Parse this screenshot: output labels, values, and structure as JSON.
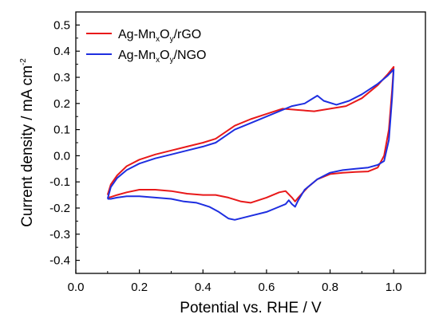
{
  "chart_data": {
    "type": "line",
    "title": "",
    "xlabel": "Potential vs. RHE  /  V",
    "ylabel": "Current density  /  mA cm",
    "ylabel_superscript": "-2",
    "xlim": [
      0.0,
      1.1
    ],
    "ylim": [
      -0.45,
      0.55
    ],
    "xticks": [
      0.0,
      0.2,
      0.4,
      0.6,
      0.8,
      1.0
    ],
    "xtick_labels": [
      "0.0",
      "0.2",
      "0.4",
      "0.6",
      "0.8",
      "1.0"
    ],
    "yticks": [
      -0.4,
      -0.3,
      -0.2,
      -0.1,
      0.0,
      0.1,
      0.2,
      0.3,
      0.4,
      0.5
    ],
    "ytick_labels": [
      "-0.4",
      "-0.3",
      "-0.2",
      "-0.1",
      "0.0",
      "0.1",
      "0.2",
      "0.3",
      "0.4",
      "0.5"
    ],
    "grid": false,
    "legend_position": "top-left",
    "series": [
      {
        "name": "Ag-MnxOy/rGO",
        "legend": {
          "base": "Ag-Mn",
          "sub1": "x",
          "mid": "O",
          "sub2": "y",
          "suffix": "/rGO"
        },
        "color": "#e8191a",
        "x": [
          0.1,
          0.11,
          0.13,
          0.16,
          0.2,
          0.25,
          0.3,
          0.35,
          0.4,
          0.44,
          0.47,
          0.5,
          0.55,
          0.6,
          0.65,
          0.7,
          0.75,
          0.8,
          0.85,
          0.9,
          0.95,
          0.98,
          1.0,
          1.0,
          0.995,
          0.985,
          0.97,
          0.95,
          0.92,
          0.88,
          0.84,
          0.8,
          0.76,
          0.73,
          0.7,
          0.69,
          0.68,
          0.66,
          0.64,
          0.6,
          0.55,
          0.52,
          0.48,
          0.44,
          0.4,
          0.35,
          0.3,
          0.25,
          0.2,
          0.16,
          0.13,
          0.11,
          0.1
        ],
        "y": [
          -0.15,
          -0.11,
          -0.075,
          -0.04,
          -0.015,
          0.005,
          0.02,
          0.035,
          0.05,
          0.065,
          0.09,
          0.115,
          0.14,
          0.16,
          0.18,
          0.175,
          0.17,
          0.18,
          0.19,
          0.22,
          0.27,
          0.31,
          0.34,
          0.34,
          0.25,
          0.1,
          0.0,
          -0.045,
          -0.06,
          -0.062,
          -0.065,
          -0.07,
          -0.09,
          -0.12,
          -0.16,
          -0.175,
          -0.16,
          -0.135,
          -0.14,
          -0.16,
          -0.18,
          -0.175,
          -0.16,
          -0.15,
          -0.15,
          -0.145,
          -0.135,
          -0.13,
          -0.13,
          -0.14,
          -0.15,
          -0.158,
          -0.16
        ]
      },
      {
        "name": "Ag-MnxOy/NGO",
        "legend": {
          "base": "Ag-Mn",
          "sub1": "x",
          "mid": "O",
          "sub2": "y",
          "suffix": "/NGO"
        },
        "color": "#1e2ee0",
        "x": [
          0.1,
          0.11,
          0.13,
          0.16,
          0.2,
          0.25,
          0.3,
          0.35,
          0.4,
          0.44,
          0.47,
          0.5,
          0.55,
          0.6,
          0.65,
          0.68,
          0.72,
          0.76,
          0.78,
          0.82,
          0.86,
          0.9,
          0.95,
          0.98,
          1.0,
          1.0,
          0.995,
          0.985,
          0.97,
          0.95,
          0.92,
          0.88,
          0.84,
          0.8,
          0.76,
          0.72,
          0.7,
          0.69,
          0.68,
          0.67,
          0.66,
          0.63,
          0.6,
          0.55,
          0.5,
          0.48,
          0.45,
          0.42,
          0.38,
          0.34,
          0.3,
          0.25,
          0.2,
          0.16,
          0.13,
          0.11,
          0.1
        ],
        "y": [
          -0.165,
          -0.12,
          -0.085,
          -0.055,
          -0.03,
          -0.01,
          0.005,
          0.02,
          0.035,
          0.05,
          0.075,
          0.1,
          0.125,
          0.15,
          0.175,
          0.19,
          0.2,
          0.23,
          0.21,
          0.195,
          0.21,
          0.235,
          0.275,
          0.305,
          0.33,
          0.33,
          0.22,
          0.06,
          -0.02,
          -0.035,
          -0.045,
          -0.05,
          -0.055,
          -0.065,
          -0.09,
          -0.13,
          -0.17,
          -0.195,
          -0.185,
          -0.17,
          -0.185,
          -0.2,
          -0.215,
          -0.23,
          -0.245,
          -0.24,
          -0.215,
          -0.195,
          -0.18,
          -0.175,
          -0.165,
          -0.16,
          -0.155,
          -0.155,
          -0.16,
          -0.165,
          -0.165
        ]
      }
    ]
  }
}
